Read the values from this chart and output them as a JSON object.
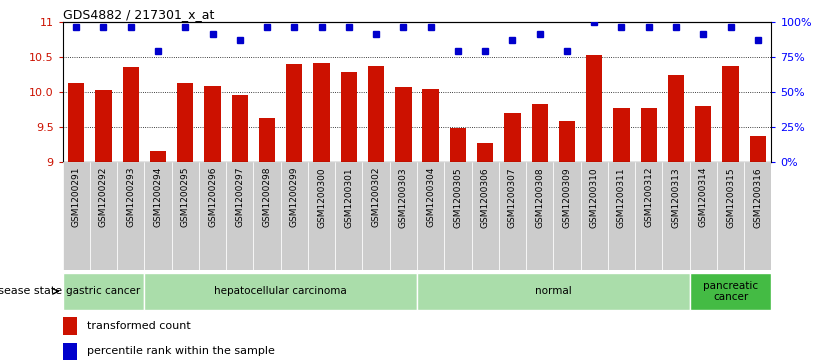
{
  "title": "GDS4882 / 217301_x_at",
  "categories": [
    "GSM1200291",
    "GSM1200292",
    "GSM1200293",
    "GSM1200294",
    "GSM1200295",
    "GSM1200296",
    "GSM1200297",
    "GSM1200298",
    "GSM1200299",
    "GSM1200300",
    "GSM1200301",
    "GSM1200302",
    "GSM1200303",
    "GSM1200304",
    "GSM1200305",
    "GSM1200306",
    "GSM1200307",
    "GSM1200308",
    "GSM1200309",
    "GSM1200310",
    "GSM1200311",
    "GSM1200312",
    "GSM1200313",
    "GSM1200314",
    "GSM1200315",
    "GSM1200316"
  ],
  "bar_values": [
    10.13,
    10.02,
    10.35,
    9.15,
    10.12,
    10.08,
    9.95,
    9.63,
    10.4,
    10.41,
    10.28,
    10.37,
    10.07,
    10.04,
    9.48,
    9.27,
    9.7,
    9.82,
    9.58,
    10.53,
    9.77,
    9.77,
    10.24,
    9.79,
    10.37,
    9.37
  ],
  "percentile_values": [
    96,
    96,
    96,
    79,
    96,
    91,
    87,
    96,
    96,
    96,
    96,
    91,
    96,
    96,
    79,
    79,
    87,
    91,
    79,
    100,
    96,
    96,
    96,
    91,
    96,
    87
  ],
  "bar_color": "#cc1100",
  "dot_color": "#0000cc",
  "ylim_left": [
    9.0,
    11.0
  ],
  "ylim_right": [
    0,
    100
  ],
  "yticks_left": [
    9.0,
    9.5,
    10.0,
    10.5,
    11.0
  ],
  "yticks_right": [
    0,
    25,
    50,
    75,
    100
  ],
  "ytick_labels_right": [
    "0%",
    "25%",
    "50%",
    "75%",
    "100%"
  ],
  "grid_values": [
    9.5,
    10.0,
    10.5
  ],
  "disease_groups": [
    {
      "label": "gastric cancer",
      "start": 0,
      "end": 3,
      "color": "#aaddaa"
    },
    {
      "label": "hepatocellular carcinoma",
      "start": 3,
      "end": 13,
      "color": "#aaddaa"
    },
    {
      "label": "normal",
      "start": 13,
      "end": 23,
      "color": "#aaddaa"
    },
    {
      "label": "pancreatic\ncancer",
      "start": 23,
      "end": 26,
      "color": "#44bb44"
    }
  ],
  "legend_bar_label": "transformed count",
  "legend_dot_label": "percentile rank within the sample",
  "disease_state_label": "disease state",
  "bar_color_legend": "#cc1100",
  "dot_color_legend": "#0000cc"
}
